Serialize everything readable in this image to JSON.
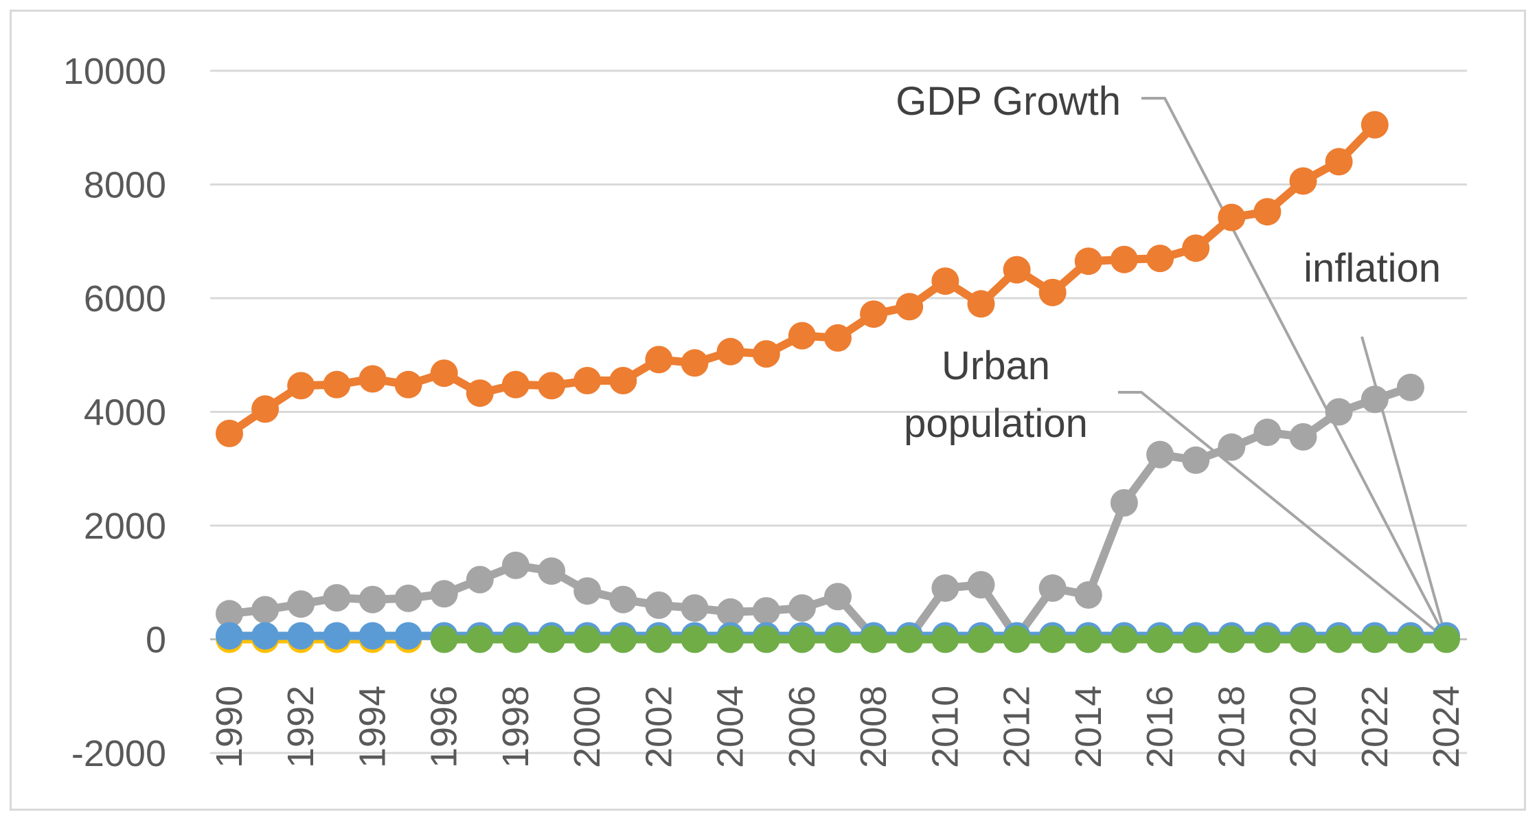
{
  "chart_data": {
    "type": "line",
    "title": "",
    "xlabel": "",
    "ylabel": "",
    "ylim": [
      -2000,
      10000
    ],
    "yticks": [
      -2000,
      0,
      2000,
      4000,
      6000,
      8000,
      10000
    ],
    "xlim": [
      1990,
      2024
    ],
    "xticks": [
      1990,
      1992,
      1994,
      1996,
      1998,
      2000,
      2002,
      2004,
      2006,
      2008,
      2010,
      2012,
      2014,
      2016,
      2018,
      2020,
      2022,
      2024
    ],
    "grid": true,
    "legend": "none",
    "series": [
      {
        "name": "orange",
        "color": "#ed7d31",
        "x": [
          1990,
          1991,
          1992,
          1993,
          1994,
          1995,
          1996,
          1997,
          1998,
          1999,
          2000,
          2001,
          2002,
          2003,
          2004,
          2005,
          2006,
          2007,
          2008,
          2009,
          2010,
          2011,
          2012,
          2013,
          2014,
          2015,
          2016,
          2017,
          2018,
          2019,
          2020,
          2021,
          2022
        ],
        "values": [
          3620,
          4050,
          4460,
          4480,
          4580,
          4480,
          4680,
          4330,
          4480,
          4460,
          4550,
          4550,
          4920,
          4860,
          5060,
          5020,
          5340,
          5300,
          5720,
          5850,
          6300,
          5900,
          6500,
          6100,
          6650,
          6680,
          6700,
          6880,
          7420,
          7520,
          8060,
          8400,
          9050
        ]
      },
      {
        "name": "gray",
        "color": "#a5a5a5",
        "x": [
          1990,
          1991,
          1992,
          1993,
          1994,
          1995,
          1996,
          1997,
          1998,
          1999,
          2000,
          2001,
          2002,
          2003,
          2004,
          2005,
          2006,
          2007,
          2008,
          2009,
          2010,
          2011,
          2012,
          2013,
          2014,
          2015,
          2016,
          2017,
          2018,
          2019,
          2020,
          2021,
          2022,
          2023
        ],
        "values": [
          450,
          520,
          620,
          730,
          700,
          720,
          800,
          1050,
          1300,
          1200,
          850,
          700,
          600,
          550,
          480,
          500,
          550,
          750,
          30,
          30,
          900,
          960,
          30,
          900,
          780,
          2400,
          3250,
          3150,
          3380,
          3640,
          3560,
          4000,
          4220,
          4430
        ]
      },
      {
        "name": "yellow",
        "color": "#ffc000",
        "x": [
          1990,
          1991,
          1992,
          1993,
          1994,
          1995
        ],
        "values": [
          0,
          0,
          0,
          0,
          0,
          0
        ]
      },
      {
        "name": "blue",
        "color": "#5b9bd5",
        "x": [
          1990,
          1991,
          1992,
          1993,
          1994,
          1995,
          1996,
          1997,
          1998,
          1999,
          2000,
          2001,
          2002,
          2003,
          2004,
          2005,
          2006,
          2007,
          2008,
          2009,
          2010,
          2011,
          2012,
          2013,
          2014,
          2015,
          2016,
          2017,
          2018,
          2019,
          2020,
          2021,
          2022,
          2023,
          2024
        ],
        "values": [
          60,
          60,
          60,
          60,
          60,
          60,
          60,
          60,
          60,
          60,
          60,
          60,
          60,
          60,
          60,
          60,
          60,
          60,
          60,
          60,
          60,
          60,
          60,
          60,
          60,
          60,
          60,
          60,
          60,
          60,
          60,
          60,
          60,
          60,
          60
        ]
      },
      {
        "name": "green",
        "color": "#70ad47",
        "x": [
          1996,
          1997,
          1998,
          1999,
          2000,
          2001,
          2002,
          2003,
          2004,
          2005,
          2006,
          2007,
          2008,
          2009,
          2010,
          2011,
          2012,
          2013,
          2014,
          2015,
          2016,
          2017,
          2018,
          2019,
          2020,
          2021,
          2022,
          2023,
          2024
        ],
        "values": [
          0,
          0,
          0,
          0,
          0,
          0,
          0,
          0,
          0,
          0,
          0,
          0,
          0,
          0,
          0,
          0,
          0,
          0,
          0,
          0,
          0,
          0,
          0,
          0,
          0,
          0,
          0,
          0,
          0
        ]
      }
    ],
    "annotations": [
      {
        "text": "GDP Growth",
        "target": [
          2024,
          0
        ]
      },
      {
        "text": "inflation",
        "target": [
          2024,
          0
        ]
      },
      {
        "text": "Urban",
        "target": [
          2024,
          0
        ]
      },
      {
        "text": "population",
        "target": null
      }
    ],
    "colors": {
      "grid": "#d9d9d9",
      "axis": "#bfbfbf",
      "leader": "#a5a5a5",
      "tick_text": "#595959",
      "annot_text": "#404040"
    }
  }
}
